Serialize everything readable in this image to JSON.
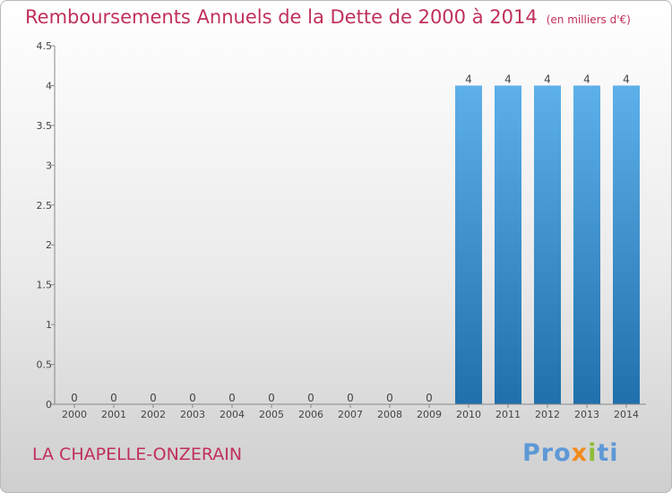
{
  "header": {
    "title": "Remboursements Annuels de la Dette de 2000 à 2014",
    "unit": "(en milliers d'€)"
  },
  "footer": {
    "commune": "LA CHAPELLE-ONZERAIN",
    "logo_parts": [
      "Pro",
      "x",
      "i",
      "ti"
    ]
  },
  "colors": {
    "title": "#c0305a",
    "bar_top": "#5eb0ea",
    "bar_bottom": "#1f70ab"
  },
  "chart_data": {
    "type": "bar",
    "title": "Remboursements Annuels de la Dette de 2000 à 2014",
    "subtitle": "(en milliers d'€)",
    "categories": [
      "2000",
      "2001",
      "2002",
      "2003",
      "2004",
      "2005",
      "2006",
      "2007",
      "2008",
      "2009",
      "2010",
      "2011",
      "2012",
      "2013",
      "2014"
    ],
    "values": [
      0,
      0,
      0,
      0,
      0,
      0,
      0,
      0,
      0,
      0,
      4,
      4,
      4,
      4,
      4
    ],
    "data_labels": [
      "0",
      "0",
      "0",
      "0",
      "0",
      "0",
      "0",
      "0",
      "0",
      "0",
      "4",
      "4",
      "4",
      "4",
      "4"
    ],
    "y_ticks": [
      0,
      0.5,
      1,
      1.5,
      2,
      2.5,
      3,
      3.5,
      4,
      4.5
    ],
    "y_tick_labels": [
      "0",
      "0.5",
      "1",
      "1.5",
      "2",
      "2.5",
      "3",
      "3.5",
      "4",
      "4.5"
    ],
    "ylim": [
      0,
      4.5
    ],
    "xlabel": "",
    "ylabel": "",
    "grid": false
  }
}
